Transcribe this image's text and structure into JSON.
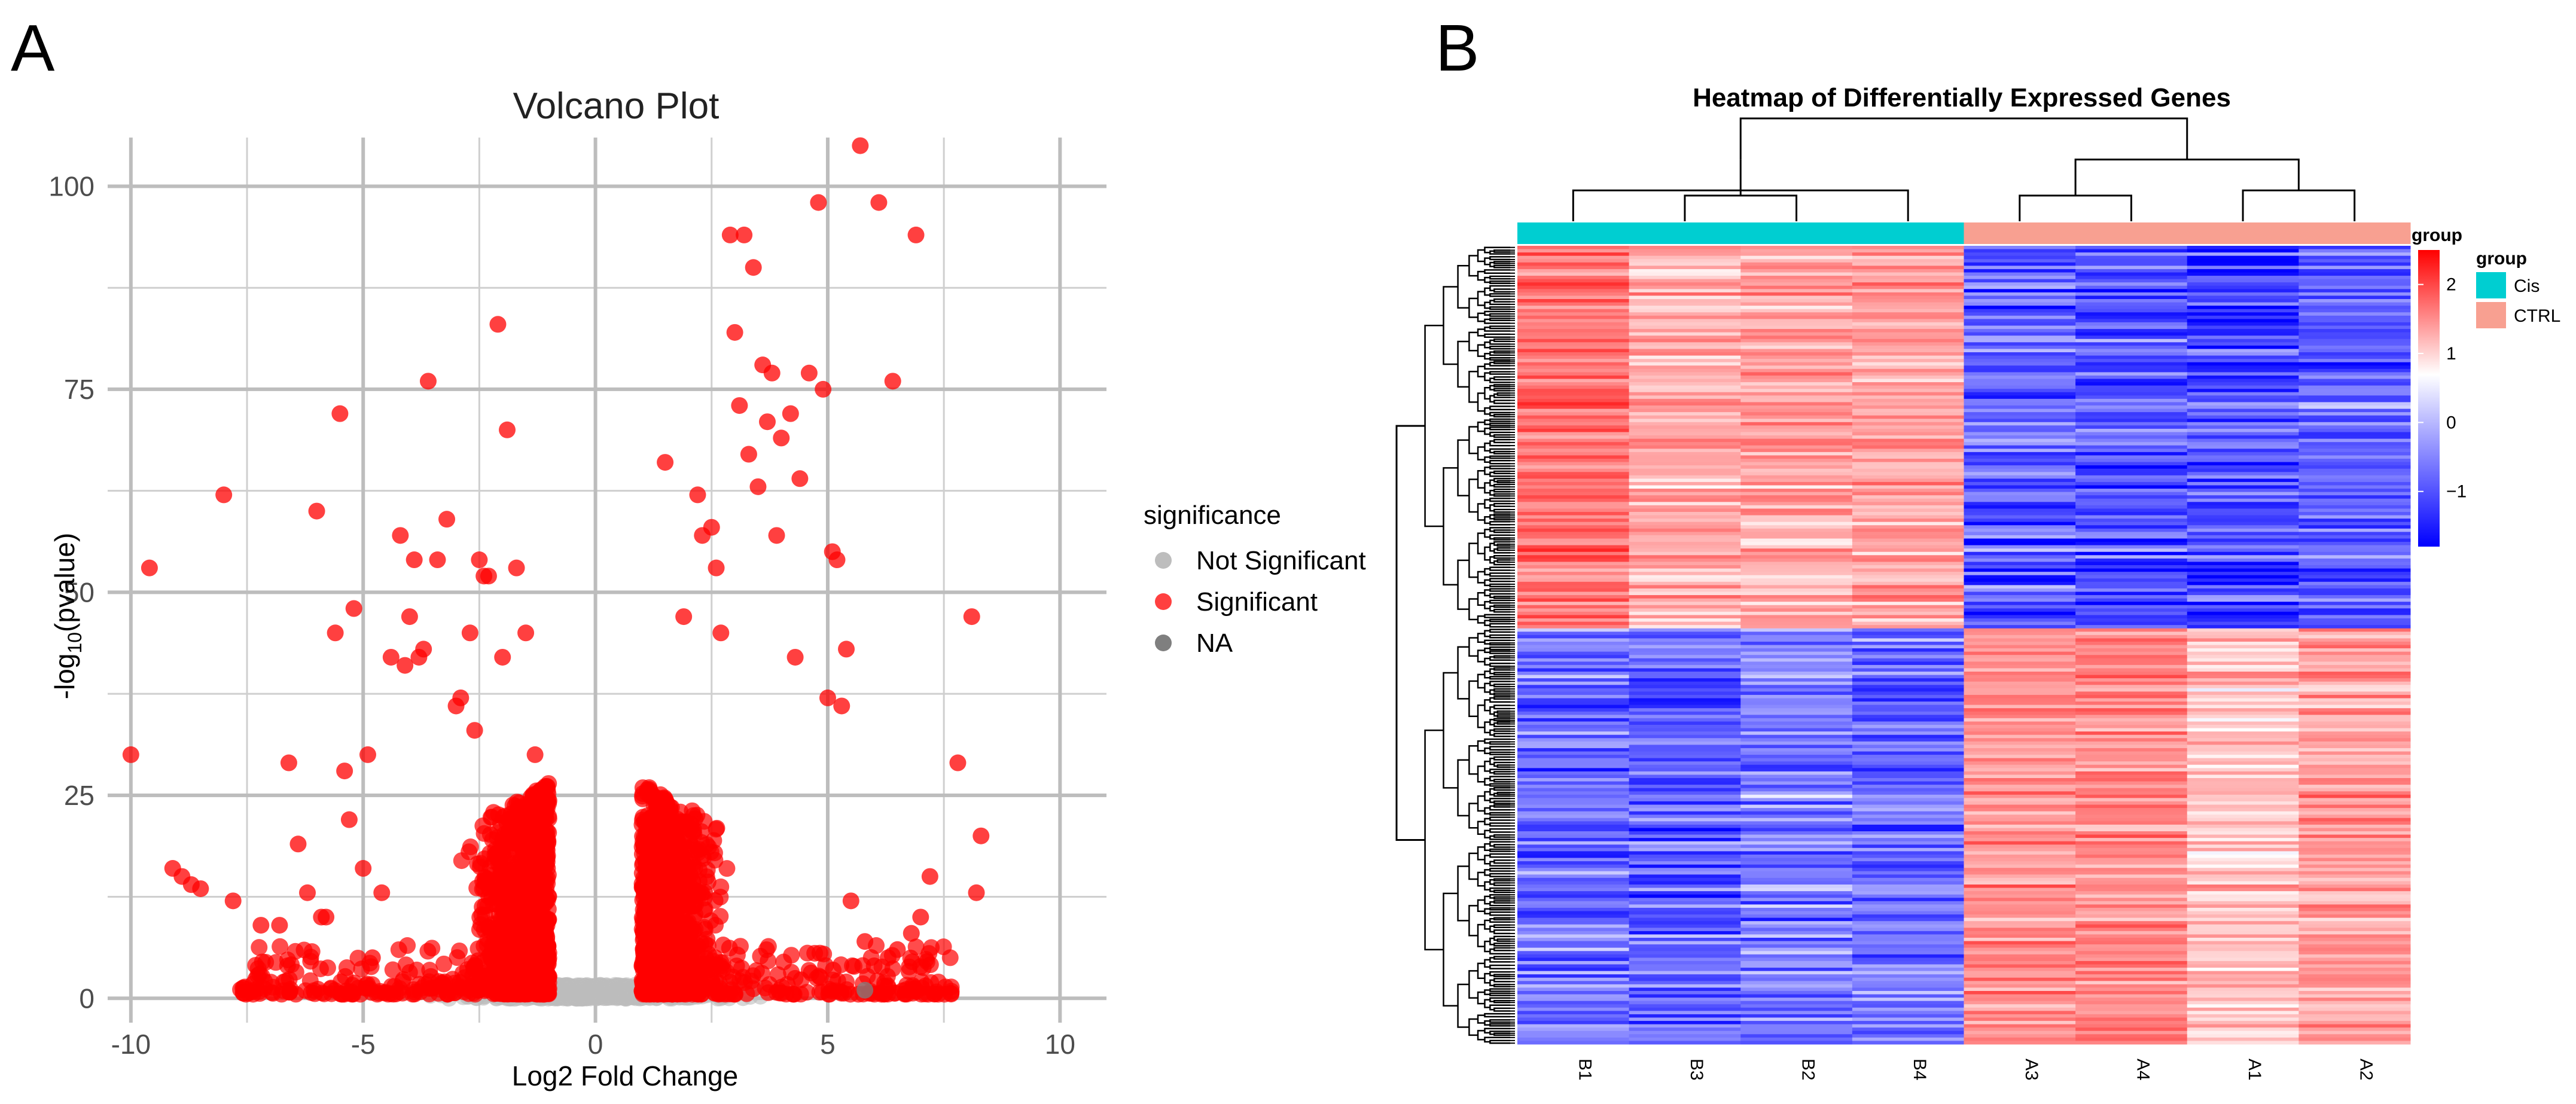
{
  "panels": {
    "a_label": "A",
    "b_label": "B"
  },
  "chart_data": [
    {
      "type": "scatter",
      "title": "Volcano Plot",
      "xlabel": "Log2 Fold Change",
      "ylabel": "-log10(pvalue)",
      "ylabel_parts": {
        "prefix": "-log",
        "subscript": "10",
        "suffix": "(pvalue)"
      },
      "xlim": [
        -10.5,
        11
      ],
      "ylim": [
        -3,
        106
      ],
      "x_ticks": [
        -10,
        -5,
        0,
        5,
        10
      ],
      "x_tick_labels": [
        "-10",
        "-5",
        "0",
        "5",
        "10"
      ],
      "y_ticks": [
        0,
        25,
        50,
        75,
        100
      ],
      "y_tick_labels": [
        "0",
        "25",
        "50",
        "75",
        "100"
      ],
      "grid": true,
      "legend": {
        "title": "significance",
        "position": "right",
        "entries": [
          {
            "label": "Not Significant",
            "color": "#bdbdbd"
          },
          {
            "label": "Significant",
            "color": "#ff0000"
          },
          {
            "label": "NA",
            "color": "#7f7f7f"
          }
        ]
      },
      "series": [
        {
          "name": "Significant",
          "color": "#ff0000",
          "points": [
            [
              -10.0,
              30
            ],
            [
              -9.6,
              53
            ],
            [
              -9.1,
              16
            ],
            [
              -8.9,
              15
            ],
            [
              -8.7,
              14
            ],
            [
              -8.5,
              13.5
            ],
            [
              -8.0,
              62
            ],
            [
              -7.8,
              12
            ],
            [
              -7.2,
              9
            ],
            [
              -6.8,
              9
            ],
            [
              -6.6,
              29
            ],
            [
              -6.4,
              19
            ],
            [
              -6.2,
              13
            ],
            [
              -6.0,
              60
            ],
            [
              -5.9,
              10
            ],
            [
              -5.8,
              10
            ],
            [
              -5.6,
              45
            ],
            [
              -5.5,
              72
            ],
            [
              -5.4,
              28
            ],
            [
              -5.3,
              22
            ],
            [
              -5.2,
              48
            ],
            [
              -5.0,
              16
            ],
            [
              -4.9,
              30
            ],
            [
              -4.8,
              5
            ],
            [
              -4.6,
              13
            ],
            [
              -4.4,
              42
            ],
            [
              -4.2,
              57
            ],
            [
              -4.0,
              47
            ],
            [
              -3.9,
              54
            ],
            [
              -3.8,
              42
            ],
            [
              -3.7,
              43
            ],
            [
              -3.6,
              76
            ],
            [
              -3.4,
              54
            ],
            [
              -3.2,
              59
            ],
            [
              -2.9,
              37
            ],
            [
              -2.6,
              33
            ],
            [
              -2.5,
              54
            ],
            [
              -2.4,
              52
            ],
            [
              -2.3,
              52
            ],
            [
              -2.1,
              83
            ],
            [
              -1.9,
              70
            ],
            [
              -1.7,
              53
            ],
            [
              -1.5,
              45
            ],
            [
              -1.3,
              30
            ],
            [
              -2.0,
              42
            ],
            [
              -2.7,
              45
            ],
            [
              -3.0,
              36
            ],
            [
              -4.1,
              41
            ],
            [
              1.5,
              66
            ],
            [
              1.9,
              47
            ],
            [
              2.2,
              62
            ],
            [
              2.5,
              58
            ],
            [
              2.7,
              45
            ],
            [
              2.9,
              94
            ],
            [
              3.0,
              82
            ],
            [
              3.1,
              73
            ],
            [
              3.2,
              94
            ],
            [
              3.4,
              90
            ],
            [
              3.6,
              78
            ],
            [
              3.7,
              71
            ],
            [
              3.8,
              77
            ],
            [
              4.0,
              69
            ],
            [
              4.2,
              72
            ],
            [
              4.4,
              64
            ],
            [
              4.6,
              77
            ],
            [
              4.8,
              98
            ],
            [
              4.9,
              75
            ],
            [
              5.1,
              55
            ],
            [
              5.2,
              54
            ],
            [
              5.4,
              43
            ],
            [
              5.7,
              105
            ],
            [
              6.1,
              98
            ],
            [
              6.4,
              76
            ],
            [
              6.9,
              94
            ],
            [
              2.3,
              57
            ],
            [
              2.6,
              53
            ],
            [
              3.3,
              67
            ],
            [
              3.5,
              63
            ],
            [
              3.9,
              57
            ],
            [
              4.3,
              42
            ],
            [
              5.0,
              37
            ],
            [
              5.3,
              36
            ],
            [
              7.2,
              15
            ],
            [
              7.8,
              29
            ],
            [
              8.1,
              47
            ],
            [
              8.3,
              20
            ],
            [
              8.2,
              13
            ],
            [
              6.8,
              8
            ],
            [
              6.5,
              6
            ],
            [
              6.3,
              5
            ],
            [
              7.0,
              10
            ],
            [
              5.5,
              12
            ],
            [
              5.8,
              7
            ],
            [
              6.0,
              4
            ]
          ]
        },
        {
          "name": "NA",
          "color": "#7f7f7f",
          "points": [
            [
              5.8,
              1
            ]
          ]
        }
      ]
    },
    {
      "type": "heatmap",
      "title": "Heatmap of Differentially Expressed Genes",
      "columns": [
        "B1",
        "B3",
        "B2",
        "B4",
        "A3",
        "A4",
        "A1",
        "A2"
      ],
      "column_groups": [
        "Cis",
        "Cis",
        "Cis",
        "Cis",
        "CTRL",
        "CTRL",
        "CTRL",
        "CTRL"
      ],
      "annotation_label": "group",
      "group_legend": {
        "title": "group",
        "entries": [
          {
            "label": "Cis",
            "color": "#00ced1"
          },
          {
            "label": "CTRL",
            "color": "#f8a091"
          }
        ]
      },
      "color_scale": {
        "ticks": [
          2,
          1,
          0,
          -1
        ],
        "tick_labels": [
          "2",
          "1",
          "0",
          "−1"
        ],
        "low_color": "#0000ff",
        "mid_color": "#ffffff",
        "high_color": "#ff0000",
        "range": [
          -1.8,
          2.5
        ]
      },
      "cluster_blocks": [
        {
          "name": "up in Cis (upper gene cluster)",
          "fraction": 0.48,
          "values": [
            1.4,
            0.8,
            0.9,
            0.9,
            -1.1,
            -1.2,
            -1.3,
            -1.1
          ]
        },
        {
          "name": "up in CTRL (lower gene cluster)",
          "fraction": 0.52,
          "values": [
            -1.0,
            -1.1,
            -0.9,
            -1.0,
            1.1,
            1.2,
            0.6,
            1.0
          ]
        }
      ],
      "column_dendrogram": {
        "merges": [
          [
            1,
            2,
            0.25
          ],
          [
            0,
            3,
            0.3
          ],
          [
            4,
            5,
            0.25
          ],
          [
            6,
            7,
            0.3
          ],
          [
            8,
            9,
            0.6
          ],
          [
            10,
            11,
            0.6
          ],
          [
            12,
            13,
            1.0
          ]
        ]
      }
    }
  ]
}
